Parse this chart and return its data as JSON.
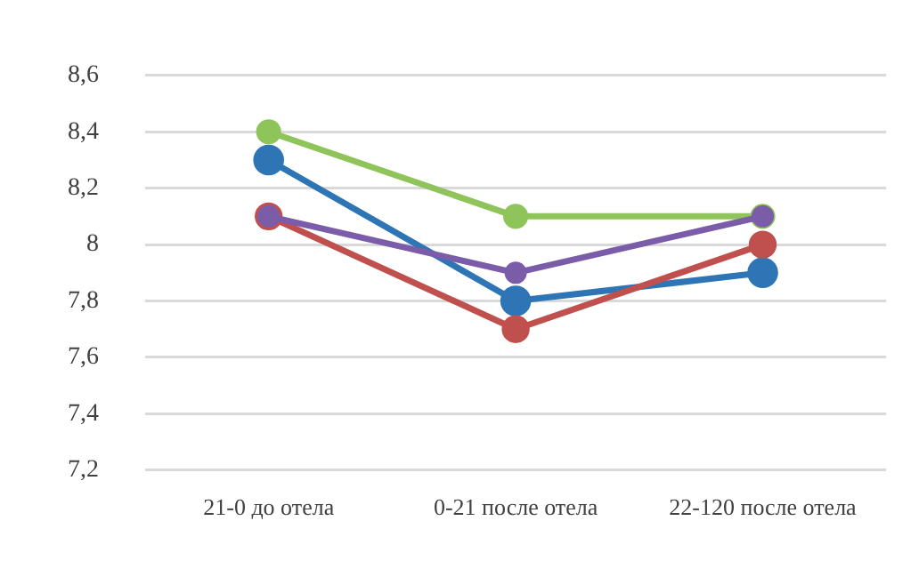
{
  "chart_data": {
    "type": "line",
    "categories": [
      "21-0 до отела",
      "0-21 после отела",
      "22-120 после отела"
    ],
    "series": [
      {
        "color": "#2e75b6",
        "values": [
          8.3,
          7.8,
          7.9
        ]
      },
      {
        "color": "#c0504d",
        "values": [
          8.1,
          7.7,
          8.0
        ]
      },
      {
        "color": "#8fc45a",
        "values": [
          8.4,
          8.1,
          8.1
        ]
      },
      {
        "color": "#7a5ca8",
        "values": [
          8.1,
          7.9,
          8.1
        ]
      }
    ],
    "ylim": [
      7.2,
      8.6
    ],
    "yticks": [
      {
        "value": 7.2,
        "label": "7,2"
      },
      {
        "value": 7.4,
        "label": "7,4"
      },
      {
        "value": 7.6,
        "label": "7,6"
      },
      {
        "value": 7.8,
        "label": "7,8"
      },
      8,
      {
        "value": 8.2,
        "label": "8,2"
      },
      {
        "value": 8.4,
        "label": "8,4"
      },
      {
        "value": 8.6,
        "label": "8,6"
      }
    ],
    "grid": "y",
    "legend": false,
    "marker": "circle",
    "line_style": "solid"
  }
}
